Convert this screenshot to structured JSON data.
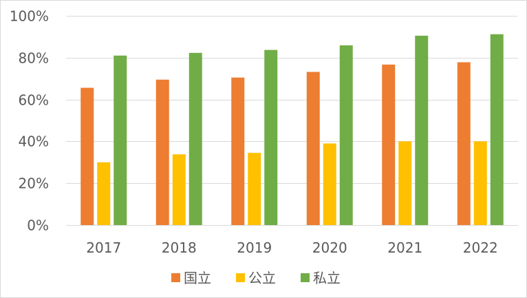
{
  "chart_data": {
    "type": "bar",
    "title": "",
    "xlabel": "",
    "ylabel": "",
    "categories": [
      "2017",
      "2018",
      "2019",
      "2020",
      "2021",
      "2022"
    ],
    "series": [
      {
        "name": "国立",
        "color": "#ED7D31",
        "values": [
          65.6,
          69.5,
          70.5,
          73.2,
          76.7,
          77.8
        ]
      },
      {
        "name": "公立",
        "color": "#FFC000",
        "values": [
          30.0,
          33.8,
          34.5,
          39.0,
          40.0,
          40.0
        ]
      },
      {
        "name": "私立",
        "color": "#70AD47",
        "values": [
          81.0,
          82.3,
          83.7,
          85.9,
          90.5,
          91.2
        ]
      }
    ],
    "ylim": [
      0,
      100
    ],
    "yticks": [
      0,
      20,
      40,
      60,
      80,
      100
    ],
    "ytick_labels": [
      "0%",
      "20%",
      "40%",
      "60%",
      "80%",
      "100%"
    ],
    "grid": true,
    "legend_position": "bottom",
    "gridline_color": "#d9d9d9"
  }
}
